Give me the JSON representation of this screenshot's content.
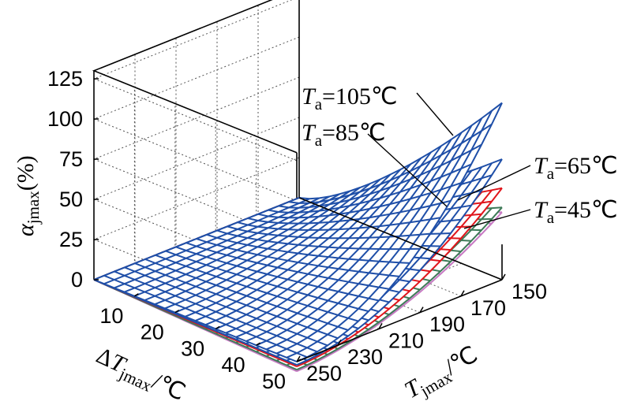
{
  "chart_data": {
    "type": "surface",
    "axes": {
      "z": {
        "label_symbol": "α",
        "label_sub": "jmax",
        "label_suffix": "(%)",
        "ticks": [
          0,
          25,
          50,
          75,
          100,
          125
        ],
        "range": [
          0,
          125
        ]
      },
      "x": {
        "label_prefix": "Δ",
        "label_symbol": "T",
        "label_sub": "jmax",
        "label_suffix": "/℃",
        "ticks": [
          10,
          20,
          30,
          40,
          50
        ],
        "range": [
          0,
          50
        ]
      },
      "y": {
        "label_symbol": "T",
        "label_sub": "jmax",
        "label_suffix": "/℃",
        "ticks": [
          150,
          170,
          190,
          210,
          230,
          250
        ],
        "range": [
          150,
          250
        ]
      }
    },
    "grid": true,
    "series": [
      {
        "name": "T_a=105℃",
        "label_symbol": "T",
        "label_sub": "a",
        "label_value": "=105℃",
        "color": "#1f4fa8",
        "corner_values": {
          "dT0_Tj250": 0,
          "dT50_Tj250": 0,
          "dT0_Tj150": 0,
          "dT50_Tj150": 110
        }
      },
      {
        "name": "T_a=85℃",
        "label_symbol": "T",
        "label_sub": "a",
        "label_value": "=85℃",
        "color": "#1f4fa8",
        "corner_values": {
          "dT0_Tj250": 0,
          "dT50_Tj250": -2,
          "dT0_Tj150": 0,
          "dT50_Tj150": 75
        }
      },
      {
        "name": "T_a=65℃",
        "label_symbol": "T",
        "label_sub": "a",
        "label_value": "=65℃",
        "color": "#e0151b",
        "corner_values": {
          "dT0_Tj250": 0,
          "dT50_Tj250": -3,
          "dT0_Tj150": 0,
          "dT50_Tj150": 57
        }
      },
      {
        "name": "T_a=45℃",
        "label_symbol": "T",
        "label_sub": "a",
        "label_value": "=45℃",
        "color": "#3e7a58",
        "corner_values": {
          "dT0_Tj250": 0,
          "dT50_Tj250": -5,
          "dT0_Tj150": 0,
          "dT50_Tj150": 45
        }
      }
    ],
    "extra_surface_color": "#c77ac3"
  }
}
